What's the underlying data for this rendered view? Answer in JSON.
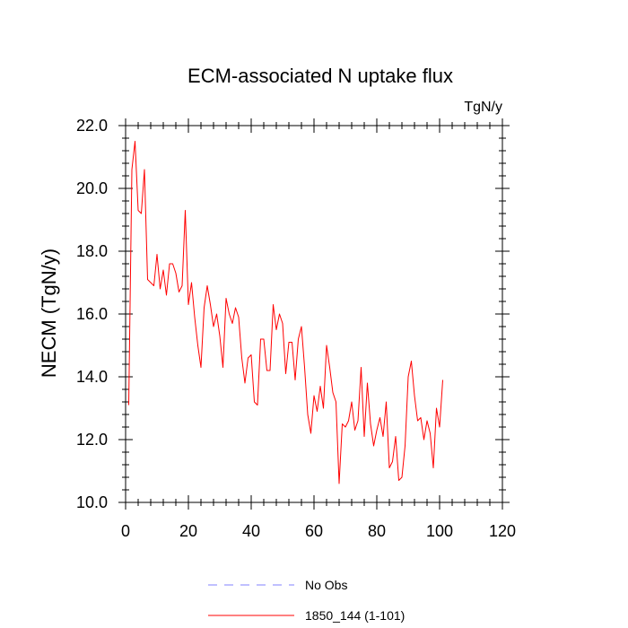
{
  "chart_data": {
    "type": "line",
    "title": "ECM-associated N uptake flux",
    "units": "TgN/y",
    "xlabel": "",
    "ylabel": "NECM  (TgN/y)",
    "xlim": [
      0,
      120
    ],
    "ylim": [
      10,
      22
    ],
    "xticks": [
      0,
      20,
      40,
      60,
      80,
      100,
      120
    ],
    "xtick_labels": [
      "0",
      "20",
      "40",
      "60",
      "80",
      "100",
      "120"
    ],
    "yticks": [
      10,
      12,
      14,
      16,
      18,
      20,
      22
    ],
    "ytick_labels": [
      "10.0",
      "12.0",
      "14.0",
      "16.0",
      "18.0",
      "20.0",
      "22.0"
    ],
    "x_minor_step": 4,
    "y_minor_step": 0.4,
    "grid": false,
    "legend_position": "bottom-center",
    "series": [
      {
        "name": "No Obs",
        "color": "#8080ff",
        "style": "dashed",
        "values": []
      },
      {
        "name": "1850_144 (1-101)",
        "color": "#ff0000",
        "style": "solid",
        "x_start": 1,
        "values": [
          13.1,
          20.6,
          21.5,
          19.3,
          19.2,
          20.6,
          17.1,
          17.0,
          16.9,
          17.9,
          16.8,
          17.4,
          16.6,
          17.6,
          17.6,
          17.3,
          16.7,
          16.9,
          19.3,
          16.3,
          17.0,
          15.9,
          15.0,
          14.3,
          16.2,
          16.9,
          16.3,
          15.6,
          16.0,
          15.3,
          14.3,
          16.5,
          16.0,
          15.7,
          16.2,
          15.9,
          14.6,
          13.8,
          14.6,
          14.7,
          13.2,
          13.1,
          15.2,
          15.2,
          14.2,
          14.2,
          16.3,
          15.5,
          16.0,
          15.7,
          14.1,
          15.1,
          15.1,
          13.9,
          15.2,
          15.6,
          14.3,
          12.8,
          12.2,
          13.4,
          12.9,
          13.7,
          13.0,
          15.0,
          14.3,
          13.5,
          13.2,
          10.6,
          12.5,
          12.4,
          12.6,
          13.2,
          12.3,
          12.6,
          14.3,
          12.1,
          13.8,
          12.5,
          11.8,
          12.3,
          12.7,
          12.1,
          13.2,
          11.1,
          11.3,
          12.1,
          10.7,
          10.8,
          11.8,
          14.0,
          14.5,
          13.4,
          12.6,
          12.7,
          12.0,
          12.6,
          12.2,
          11.1,
          13.0,
          12.4,
          13.9
        ]
      }
    ]
  }
}
